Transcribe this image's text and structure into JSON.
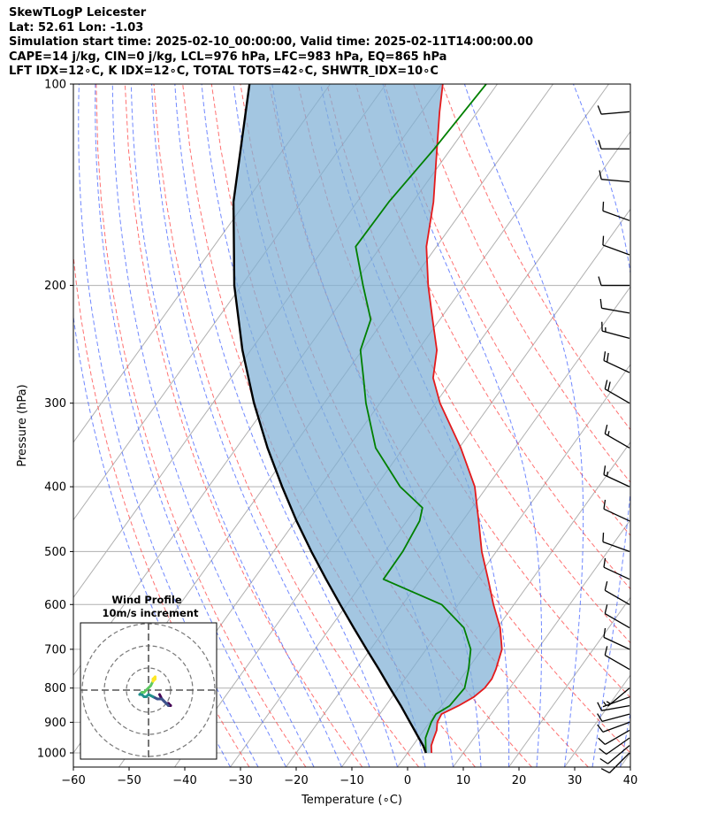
{
  "header": {
    "line1": "SkewTLogP Leicester",
    "line2": "Lat: 52.61   Lon: -1.03",
    "line3": "Simulation start time: 2025-02-10_00:00:00, Valid time: 2025-02-11T14:00:00.00",
    "line4": "CAPE=14 j/kg, CIN=0 j/kg, LCL=976 hPa, LFC=983 hPa, EQ=865 hPa",
    "line5": "LFT IDX=12∘C, K IDX=12∘C, TOTAL TOTS=42∘C, SHWTR_IDX=10∘C"
  },
  "chart_data": {
    "type": "line",
    "subtype": "skew-T log-p diagram",
    "xlabel": "Temperature (∘C)",
    "ylabel": "Pressure (hPa)",
    "xlim": [
      -60,
      40
    ],
    "ylim": [
      1050,
      100
    ],
    "xticks": [
      -60,
      -50,
      -40,
      -30,
      -20,
      -10,
      0,
      10,
      20,
      30,
      40
    ],
    "xtick_labels": [
      "−60",
      "−50",
      "−40",
      "−30",
      "−20",
      "−10",
      "0",
      "10",
      "20",
      "30",
      "40"
    ],
    "yticks": [
      1000,
      900,
      800,
      700,
      600,
      500,
      400,
      300,
      200,
      100
    ],
    "ytick_labels": [
      "1000",
      "900",
      "800",
      "700",
      "600",
      "500",
      "400",
      "300",
      "200",
      "100"
    ],
    "grid": true,
    "series": [
      {
        "name": "Temperature",
        "color": "#e41a1c",
        "points": [
          [
            1000,
            4.3
          ],
          [
            975,
            3.3
          ],
          [
            950,
            2.8
          ],
          [
            925,
            2.3
          ],
          [
            900,
            1.4
          ],
          [
            875,
            1.1
          ],
          [
            850,
            3.1
          ],
          [
            825,
            4.7
          ],
          [
            800,
            5.5
          ],
          [
            775,
            5.6
          ],
          [
            750,
            5.1
          ],
          [
            700,
            3.6
          ],
          [
            650,
            0.5
          ],
          [
            600,
            -3.7
          ],
          [
            550,
            -7.9
          ],
          [
            500,
            -12.6
          ],
          [
            450,
            -17.1
          ],
          [
            400,
            -22.2
          ],
          [
            350,
            -29.7
          ],
          [
            300,
            -39.2
          ],
          [
            275,
            -43.7
          ],
          [
            250,
            -46.6
          ],
          [
            225,
            -51.3
          ],
          [
            200,
            -56.5
          ],
          [
            175,
            -61.8
          ],
          [
            150,
            -66.3
          ],
          [
            125,
            -72.5
          ],
          [
            110,
            -76.8
          ],
          [
            100,
            -79.8
          ]
        ]
      },
      {
        "name": "Dewpoint",
        "color": "#008000",
        "points": [
          [
            1000,
            3.3
          ],
          [
            975,
            2.3
          ],
          [
            950,
            1.3
          ],
          [
            925,
            0.8
          ],
          [
            900,
            0.3
          ],
          [
            875,
            0.1
          ],
          [
            850,
            1.5
          ],
          [
            800,
            1.9
          ],
          [
            750,
            0.2
          ],
          [
            700,
            -2.0
          ],
          [
            650,
            -6.0
          ],
          [
            600,
            -13.0
          ],
          [
            550,
            -26.7
          ],
          [
            500,
            -26.8
          ],
          [
            450,
            -27.7
          ],
          [
            430,
            -28.9
          ],
          [
            400,
            -35.6
          ],
          [
            360,
            -43.0
          ],
          [
            350,
            -45.0
          ],
          [
            300,
            -52.5
          ],
          [
            275,
            -56.2
          ],
          [
            250,
            -60.3
          ],
          [
            225,
            -62.4
          ],
          [
            200,
            -68.2
          ],
          [
            175,
            -74.5
          ],
          [
            150,
            -74.3
          ],
          [
            125,
            -73.0
          ],
          [
            100,
            -72.0
          ]
        ]
      },
      {
        "name": "Parcel profile",
        "color": "#000000",
        "points": [
          [
            1000,
            3.3
          ],
          [
            976,
            1.9
          ],
          [
            950,
            0.1
          ],
          [
            900,
            -3.5
          ],
          [
            850,
            -7.3
          ],
          [
            800,
            -11.5
          ],
          [
            750,
            -15.9
          ],
          [
            700,
            -20.7
          ],
          [
            650,
            -25.8
          ],
          [
            600,
            -31.2
          ],
          [
            550,
            -37.0
          ],
          [
            500,
            -43.2
          ],
          [
            450,
            -49.8
          ],
          [
            400,
            -56.8
          ],
          [
            350,
            -64.4
          ],
          [
            300,
            -72.6
          ],
          [
            250,
            -81.5
          ],
          [
            200,
            -91.3
          ],
          [
            150,
            -102.2
          ],
          [
            100,
            -114.5
          ]
        ]
      }
    ],
    "shaded_area": "CIN/CAPE region between parcel profile and temperature",
    "wind_barbs": [
      {
        "p": 1000,
        "speed_kt": 10,
        "dir_deg": 225
      },
      {
        "p": 975,
        "speed_kt": 10,
        "dir_deg": 230
      },
      {
        "p": 950,
        "speed_kt": 10,
        "dir_deg": 235
      },
      {
        "p": 925,
        "speed_kt": 10,
        "dir_deg": 240
      },
      {
        "p": 900,
        "speed_kt": 10,
        "dir_deg": 250
      },
      {
        "p": 875,
        "speed_kt": 10,
        "dir_deg": 255
      },
      {
        "p": 850,
        "speed_kt": 10,
        "dir_deg": 260
      },
      {
        "p": 825,
        "speed_kt": 5,
        "dir_deg": 250
      },
      {
        "p": 800,
        "speed_kt": 5,
        "dir_deg": 230
      },
      {
        "p": 750,
        "speed_kt": 10,
        "dir_deg": 300
      },
      {
        "p": 700,
        "speed_kt": 10,
        "dir_deg": 295
      },
      {
        "p": 650,
        "speed_kt": 10,
        "dir_deg": 300
      },
      {
        "p": 600,
        "speed_kt": 10,
        "dir_deg": 300
      },
      {
        "p": 550,
        "speed_kt": 10,
        "dir_deg": 295
      },
      {
        "p": 500,
        "speed_kt": 10,
        "dir_deg": 290
      },
      {
        "p": 450,
        "speed_kt": 10,
        "dir_deg": 295
      },
      {
        "p": 400,
        "speed_kt": 15,
        "dir_deg": 295
      },
      {
        "p": 350,
        "speed_kt": 15,
        "dir_deg": 300
      },
      {
        "p": 300,
        "speed_kt": 20,
        "dir_deg": 300
      },
      {
        "p": 270,
        "speed_kt": 20,
        "dir_deg": 295
      },
      {
        "p": 240,
        "speed_kt": 15,
        "dir_deg": 285
      },
      {
        "p": 220,
        "speed_kt": 10,
        "dir_deg": 280
      },
      {
        "p": 200,
        "speed_kt": 10,
        "dir_deg": 270
      },
      {
        "p": 180,
        "speed_kt": 10,
        "dir_deg": 290
      },
      {
        "p": 160,
        "speed_kt": 10,
        "dir_deg": 290
      },
      {
        "p": 140,
        "speed_kt": 10,
        "dir_deg": 275
      },
      {
        "p": 125,
        "speed_kt": 10,
        "dir_deg": 270
      },
      {
        "p": 110,
        "speed_kt": 10,
        "dir_deg": 265
      }
    ],
    "hodograph": {
      "title": "Wind Profile",
      "subtitle": "10m/s increment",
      "rings_mps": [
        10,
        20,
        30
      ],
      "points": [
        [
          5,
          -2
        ],
        [
          6,
          -4
        ],
        [
          7,
          -5
        ],
        [
          8,
          -6
        ],
        [
          9,
          -6
        ],
        [
          10,
          -7
        ],
        [
          9,
          -7
        ],
        [
          8,
          -6
        ],
        [
          7,
          -5
        ],
        [
          6,
          -4
        ],
        [
          4,
          -4
        ],
        [
          2,
          -3
        ],
        [
          0,
          -2
        ],
        [
          -1,
          -3
        ],
        [
          -2,
          -3
        ],
        [
          -3,
          -2
        ],
        [
          -4,
          -2
        ],
        [
          -3,
          -1
        ],
        [
          -2,
          -1
        ],
        [
          -1,
          0
        ],
        [
          0,
          1
        ],
        [
          1,
          2
        ],
        [
          2,
          4
        ],
        [
          2,
          5
        ],
        [
          3,
          6
        ],
        [
          3,
          5
        ],
        [
          2,
          4
        ]
      ]
    }
  }
}
